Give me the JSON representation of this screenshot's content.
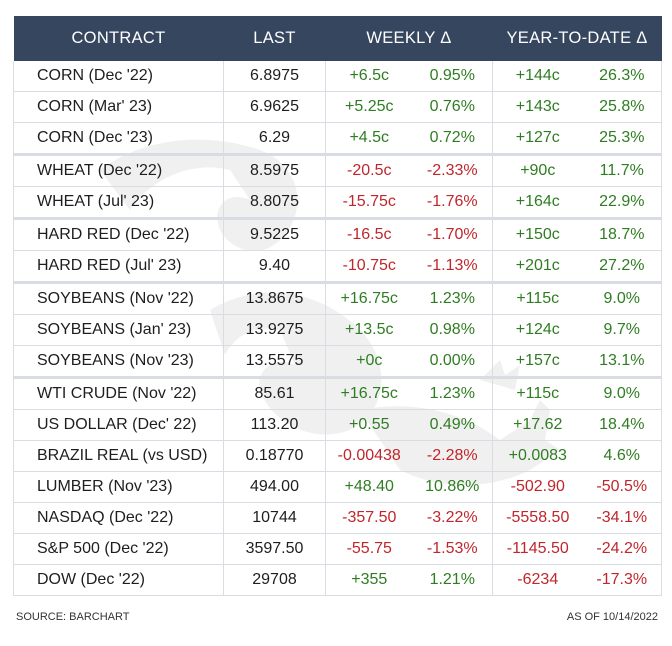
{
  "header": {
    "contract": "CONTRACT",
    "last": "LAST",
    "weekly": "WEEKLY Δ",
    "ytd": "YEAR-TO-DATE Δ"
  },
  "rows": [
    {
      "name": "CORN  (Dec '22)",
      "last": "6.8975",
      "wa": "+6.5c",
      "wp": "0.95%",
      "ya": "+144c",
      "yp": "26.3%",
      "wsign": "pos",
      "ysign": "pos",
      "group_start": true
    },
    {
      "name": "CORN (Mar' 23)",
      "last": "6.9625",
      "wa": "+5.25c",
      "wp": "0.76%",
      "ya": "+143c",
      "yp": "25.8%",
      "wsign": "pos",
      "ysign": "pos",
      "group_start": false
    },
    {
      "name": "CORN  (Dec '23)",
      "last": "6.29",
      "wa": "+4.5c",
      "wp": "0.72%",
      "ya": "+127c",
      "yp": "25.3%",
      "wsign": "pos",
      "ysign": "pos",
      "group_start": false
    },
    {
      "name": "WHEAT  (Dec '22)",
      "last": "8.5975",
      "wa": "-20.5c",
      "wp": "-2.33%",
      "ya": "+90c",
      "yp": "11.7%",
      "wsign": "neg",
      "ysign": "pos",
      "group_start": true
    },
    {
      "name": "WHEAT (Jul' 23)",
      "last": "8.8075",
      "wa": "-15.75c",
      "wp": "-1.76%",
      "ya": "+164c",
      "yp": "22.9%",
      "wsign": "neg",
      "ysign": "pos",
      "group_start": false
    },
    {
      "name": "HARD RED  (Dec '22)",
      "last": "9.5225",
      "wa": "-16.5c",
      "wp": "-1.70%",
      "ya": "+150c",
      "yp": "18.7%",
      "wsign": "neg",
      "ysign": "pos",
      "group_start": true
    },
    {
      "name": "HARD RED (Jul' 23)",
      "last": "9.40",
      "wa": "-10.75c",
      "wp": "-1.13%",
      "ya": "+201c",
      "yp": "27.2%",
      "wsign": "neg",
      "ysign": "pos",
      "group_start": false
    },
    {
      "name": "SOYBEANS  (Nov '22)",
      "last": "13.8675",
      "wa": "+16.75c",
      "wp": "1.23%",
      "ya": "+115c",
      "yp": "9.0%",
      "wsign": "pos",
      "ysign": "pos",
      "group_start": true
    },
    {
      "name": "SOYBEANS (Jan' 23)",
      "last": "13.9275",
      "wa": "+13.5c",
      "wp": "0.98%",
      "ya": "+124c",
      "yp": "9.7%",
      "wsign": "pos",
      "ysign": "pos",
      "group_start": false
    },
    {
      "name": "SOYBEANS  (Nov '23)",
      "last": "13.5575",
      "wa": "+0c",
      "wp": "0.00%",
      "ya": "+157c",
      "yp": "13.1%",
      "wsign": "pos",
      "ysign": "pos",
      "group_start": false
    },
    {
      "name": "WTI CRUDE  (Nov '22)",
      "last": "85.61",
      "wa": "+16.75c",
      "wp": "1.23%",
      "ya": "+115c",
      "yp": "9.0%",
      "wsign": "pos",
      "ysign": "pos",
      "group_start": true
    },
    {
      "name": "US DOLLAR (Dec' 22)",
      "last": "113.20",
      "wa": "+0.55",
      "wp": "0.49%",
      "ya": "+17.62",
      "yp": "18.4%",
      "wsign": "pos",
      "ysign": "pos",
      "group_start": false
    },
    {
      "name": "BRAZIL REAL  (vs USD)",
      "last": "0.18770",
      "wa": "-0.00438",
      "wp": "-2.28%",
      "ya": "+0.0083",
      "yp": "4.6%",
      "wsign": "neg",
      "ysign": "pos",
      "group_start": false
    },
    {
      "name": "LUMBER  (Nov '23)",
      "last": "494.00",
      "wa": "+48.40",
      "wp": "10.86%",
      "ya": "-502.90",
      "yp": "-50.5%",
      "wsign": "pos",
      "ysign": "neg",
      "group_start": false
    },
    {
      "name": "NASDAQ  (Dec '22)",
      "last": "10744",
      "wa": "-357.50",
      "wp": "-3.22%",
      "ya": "-5558.50",
      "yp": "-34.1%",
      "wsign": "neg",
      "ysign": "neg",
      "group_start": false
    },
    {
      "name": "S&P 500  (Dec '22)",
      "last": "3597.50",
      "wa": "-55.75",
      "wp": "-1.53%",
      "ya": "-1145.50",
      "yp": "-24.2%",
      "wsign": "neg",
      "ysign": "neg",
      "group_start": false
    },
    {
      "name": "DOW (Dec '22)",
      "last": "29708",
      "wa": "+355",
      "wp": "1.21%",
      "ya": "-6234",
      "yp": "-17.3%",
      "wsign": "pos",
      "ysign": "neg",
      "group_start": false
    }
  ],
  "footer": {
    "source": "SOURCE: BARCHART",
    "as_of": "AS OF 10/14/2022"
  },
  "colors": {
    "header_bg": "#36465f",
    "positive": "#2f7d22",
    "negative": "#c0262b"
  }
}
